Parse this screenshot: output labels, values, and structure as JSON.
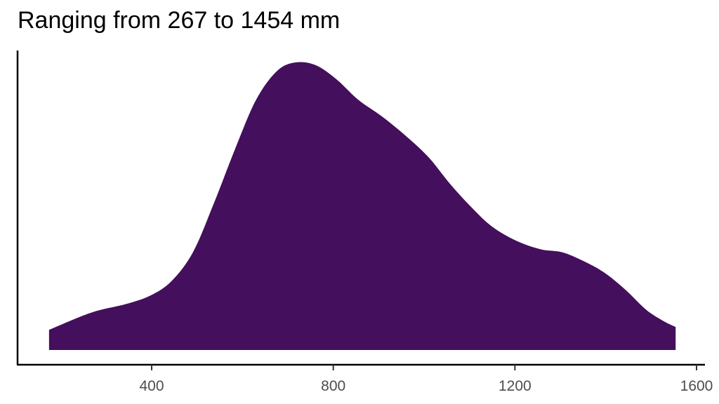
{
  "chart_data": {
    "type": "area",
    "subtype": "density",
    "title": "Ranging from 267 to 1454 mm",
    "xlabel": "",
    "ylabel": "",
    "xlim": [
      110,
      1610
    ],
    "x_ticks": [
      400,
      800,
      1200,
      1600
    ],
    "y_ticks": [],
    "grid": false,
    "legend": null,
    "fill_color": "#440F5C",
    "x": [
      174,
      267,
      344,
      398,
      444,
      491,
      537,
      584,
      630,
      676,
      717,
      762,
      808,
      855,
      909,
      963,
      1010,
      1056,
      1102,
      1149,
      1203,
      1257,
      1304,
      1350,
      1396,
      1443,
      1489,
      1528,
      1554
    ],
    "density_relative": [
      0.07,
      0.13,
      0.16,
      0.19,
      0.24,
      0.34,
      0.51,
      0.7,
      0.87,
      0.97,
      1.0,
      0.99,
      0.94,
      0.87,
      0.81,
      0.74,
      0.67,
      0.58,
      0.5,
      0.43,
      0.38,
      0.35,
      0.34,
      0.31,
      0.27,
      0.21,
      0.14,
      0.1,
      0.08
    ]
  },
  "header": {
    "title": "Ranging from 267 to 1454 mm"
  },
  "axis": {
    "x_tick_labels": [
      "400",
      "800",
      "1200",
      "1600"
    ]
  }
}
